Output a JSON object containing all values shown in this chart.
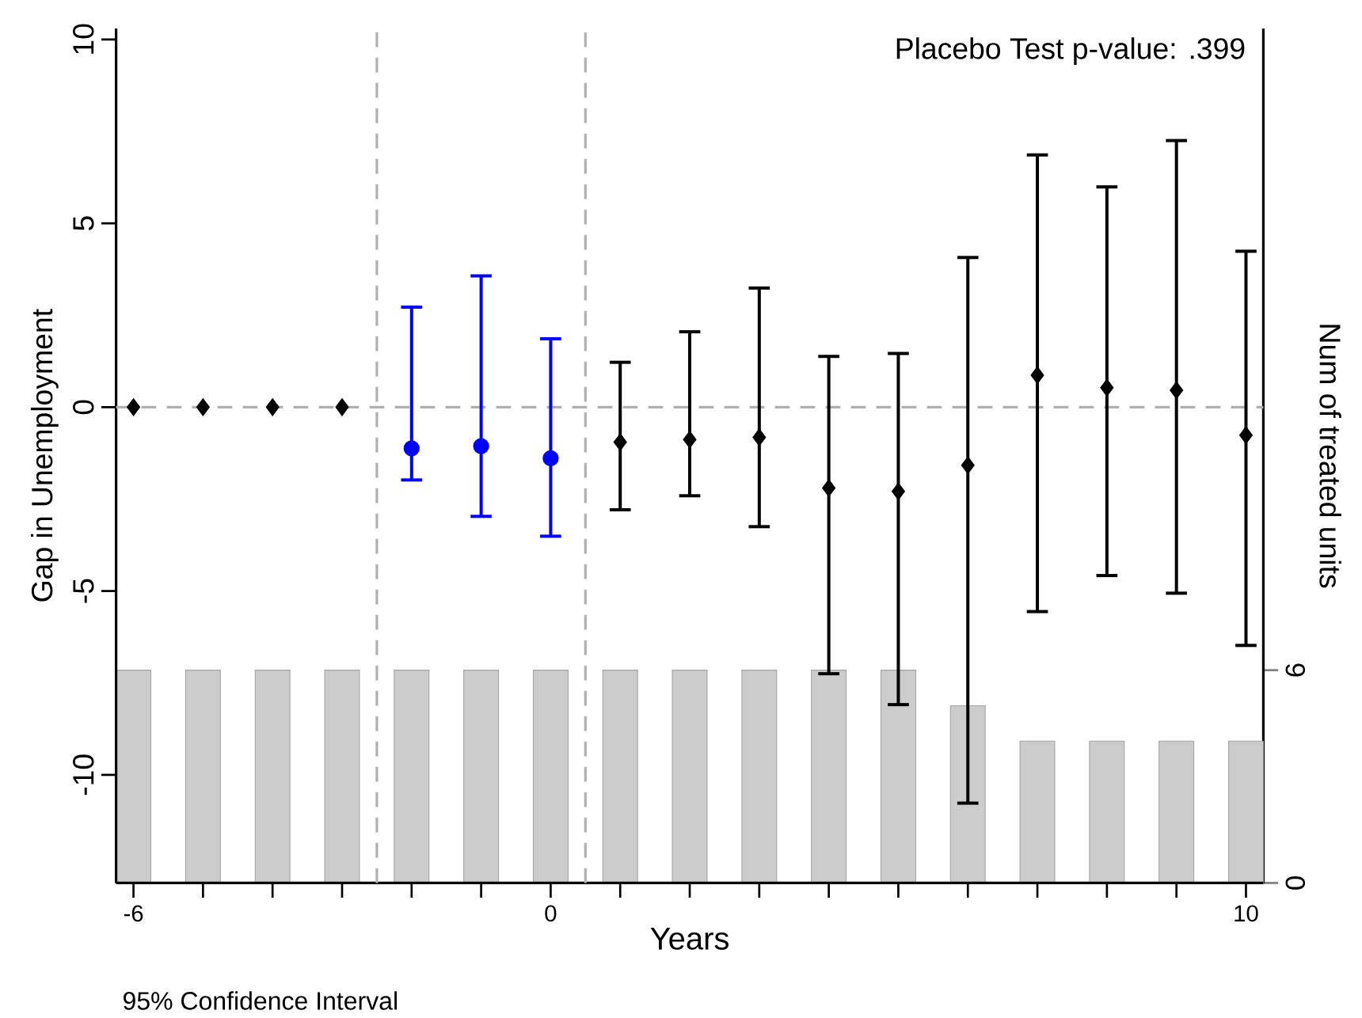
{
  "chart_data": {
    "type": "scatter",
    "xlabel": "Years",
    "ylabel": "Gap in Unemployment",
    "y2label": "Num of treated units",
    "annotations": [
      "Placebo Test p-value: .399",
      "95% Confidence Interval"
    ],
    "xlim": [
      -6.25,
      10.25
    ],
    "xticks": [
      -6,
      {
        "value": -5,
        "label": null
      },
      {
        "value": -4,
        "label": null
      },
      {
        "value": -3,
        "label": null
      },
      {
        "value": -2,
        "label": null
      },
      {
        "value": -1,
        "label": null
      },
      0,
      {
        "value": 1,
        "label": null
      },
      {
        "value": 2,
        "label": null
      },
      {
        "value": 3,
        "label": null
      },
      {
        "value": 4,
        "label": null
      },
      {
        "value": 5,
        "label": null
      },
      {
        "value": 6,
        "label": null
      },
      {
        "value": 7,
        "label": null
      },
      {
        "value": 8,
        "label": null
      },
      {
        "value": 9,
        "label": null
      },
      10
    ],
    "ylim": [
      -12.94,
      10.3
    ],
    "yticks": [
      -10,
      -5,
      0,
      5,
      10
    ],
    "y2lim": [
      0,
      24.1
    ],
    "y2ticks": [
      0,
      6
    ],
    "ref_lines": [
      {
        "axis": "y",
        "value": 0,
        "color": "#b0b0b0",
        "line_style": "dashed"
      },
      {
        "axis": "x",
        "value": -2.5,
        "color": "#b0b0b0",
        "line_style": "dashed"
      },
      {
        "axis": "x",
        "value": 0.5,
        "color": "#b0b0b0",
        "line_style": "dashed"
      }
    ],
    "series": [
      {
        "type": "bar",
        "axis": "y2",
        "color": "#cccccc",
        "x": [
          -6,
          -5,
          -4,
          -3,
          -2,
          -1,
          0,
          1,
          2,
          3,
          4,
          5,
          6,
          7,
          8,
          9,
          10
        ],
        "values": [
          6,
          6,
          6,
          6,
          6,
          6,
          6,
          6,
          6,
          6,
          6,
          6,
          5,
          4,
          4,
          4,
          4
        ]
      },
      {
        "color": "#000000",
        "marker": "diamond",
        "x": [
          -6,
          -5,
          -4,
          -3
        ],
        "values": [
          0,
          0,
          0,
          0
        ]
      },
      {
        "color": "#0000ff",
        "marker": "circle",
        "x": [
          -2,
          -1,
          0
        ],
        "values": [
          -1.12,
          -1.06,
          -1.39
        ],
        "errors": [
          [
            -1.98,
            2.72
          ],
          [
            -2.97,
            3.57
          ],
          [
            -3.51,
            1.86
          ]
        ]
      },
      {
        "color": "#000000",
        "marker": "diamond",
        "x": [
          1,
          2,
          3,
          4,
          5,
          6,
          7,
          8,
          9,
          10
        ],
        "values": [
          -0.95,
          -0.88,
          -0.82,
          -2.2,
          -2.29,
          -1.58,
          0.87,
          0.53,
          0.46,
          -0.76
        ],
        "errors": [
          [
            -2.79,
            1.22
          ],
          [
            -2.41,
            2.05
          ],
          [
            -3.25,
            3.24
          ],
          [
            -7.25,
            1.38
          ],
          [
            -8.09,
            1.46
          ],
          [
            -10.77,
            4.07
          ],
          [
            -5.56,
            6.86
          ],
          [
            -4.58,
            5.99
          ],
          [
            -5.06,
            7.25
          ],
          [
            -6.48,
            4.24
          ]
        ]
      }
    ]
  }
}
